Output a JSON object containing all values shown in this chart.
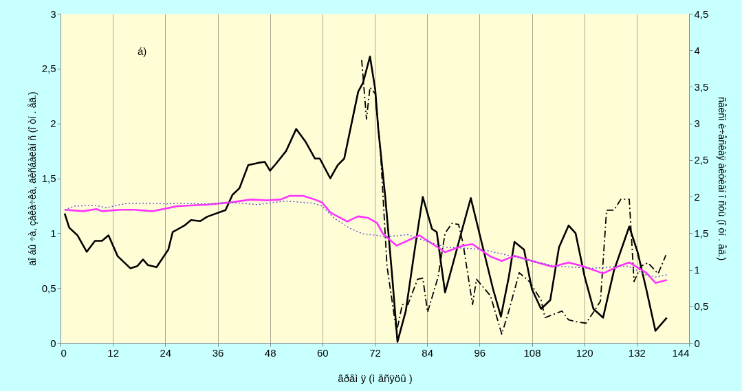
{
  "chart_data": {
    "type": "line",
    "xlabel": "âðåì ÿ (ì åñÿöû )",
    "ylabel": "äî áû ÷à, çàêà÷êà, äèñáàëàí ñ (î òí . åä.)",
    "y2label": "ñåéñì è÷åñêàÿ àêòèâí î ñòü (î òí . åä.)",
    "annotations": [
      "á)"
    ],
    "xlim": [
      0,
      144
    ],
    "xticks": [
      0,
      12,
      24,
      36,
      48,
      60,
      72,
      84,
      96,
      108,
      120,
      132,
      144
    ],
    "ylim": [
      0,
      3
    ],
    "yticks": [
      0,
      {
        "value": 0.5,
        "label": "0,5"
      },
      1,
      {
        "value": 1.5,
        "label": "1,5"
      },
      2,
      {
        "value": 2.5,
        "label": "2,5"
      },
      3
    ],
    "y2lim": [
      0,
      4.5
    ],
    "y2ticks": [
      0,
      {
        "value": 0.5,
        "label": "0,5"
      },
      1,
      {
        "value": 1.5,
        "label": "1,5"
      },
      2,
      {
        "value": 2.5,
        "label": "2,5"
      },
      3,
      {
        "value": 3.5,
        "label": "3,5"
      },
      4,
      {
        "value": 4.5,
        "label": "4,5"
      }
    ],
    "grid": "x",
    "marker": "none",
    "series": [
      {
        "color": "#000000",
        "line_style": "solid",
        "x": [
          0.95,
          2.0,
          3.9,
          6,
          7.9,
          9.5,
          11,
          13.1,
          16,
          17.6,
          18.9,
          20,
          22,
          24.7,
          25.7,
          28.4,
          29.9,
          32,
          33.6,
          37.8,
          39.4,
          41,
          43,
          45.2,
          46.8,
          48,
          49.3,
          51.7,
          54,
          56.2,
          58.3,
          59.4,
          61.8,
          63.5,
          65,
          68.2,
          69.3,
          70.9,
          72.1,
          72.8,
          74.4,
          76,
          77.2,
          79.1,
          81,
          83,
          85.1,
          86.2,
          88.1,
          90.1,
          92.2,
          94,
          95.9,
          99.1,
          100.9,
          102.7,
          104,
          106.2,
          108,
          110.1,
          112.2,
          114.2,
          116.4,
          118,
          120.1,
          122.1,
          124.3,
          126.8,
          130.3,
          132.2,
          134.2,
          136.3,
          138.9
        ],
        "values": [
          1.18,
          1.05,
          0.98,
          0.83,
          0.93,
          0.93,
          0.98,
          0.79,
          0.68,
          0.7,
          0.76,
          0.71,
          0.69,
          0.85,
          1.01,
          1.07,
          1.12,
          1.11,
          1.15,
          1.21,
          1.35,
          1.41,
          1.62,
          1.64,
          1.65,
          1.57,
          1.63,
          1.75,
          1.95,
          1.83,
          1.68,
          1.68,
          1.5,
          1.62,
          1.68,
          2.29,
          2.37,
          2.61,
          2.31,
          1.95,
          1.33,
          0.6,
          0.01,
          0.29,
          0.81,
          1.33,
          1.04,
          1.01,
          0.46,
          0.75,
          1.06,
          1.32,
          1.01,
          0.49,
          0.24,
          0.6,
          0.92,
          0.85,
          0.49,
          0.31,
          0.39,
          0.87,
          1.07,
          1.0,
          0.6,
          0.31,
          0.23,
          0.66,
          1.06,
          0.83,
          0.49,
          0.11,
          0.23
        ]
      },
      {
        "color": "#000000",
        "line_style": "dashed",
        "x": [
          69,
          70.1,
          70.9,
          72.1,
          73.3,
          74.8,
          77,
          78.3,
          79.6,
          81.8,
          83,
          84.1,
          86.5,
          88.1,
          89.7,
          91.2,
          92.2,
          94.4,
          95.3,
          98.5,
          101.1,
          102.7,
          105.1,
          107.4,
          110.1,
          111,
          114.9,
          116.4,
          118.5,
          120.4,
          122.1,
          123.7,
          125.1,
          126.8,
          128.4,
          130.3,
          131.4,
          133,
          134.6,
          136.9,
          138.7
        ],
        "values": [
          2.58,
          2.04,
          2.33,
          2.27,
          1.75,
          0.7,
          0.1,
          0.35,
          0.35,
          0.58,
          0.59,
          0.28,
          0.6,
          1.0,
          1.09,
          1.08,
          0.91,
          0.35,
          0.58,
          0.43,
          0.08,
          0.29,
          0.64,
          0.56,
          0.39,
          0.23,
          0.29,
          0.21,
          0.19,
          0.18,
          0.28,
          0.38,
          1.21,
          1.21,
          1.31,
          1.31,
          0.56,
          0.7,
          0.73,
          0.63,
          0.8
        ]
      },
      {
        "color": "#ff33ff",
        "line_style": "solid",
        "axis": "y2",
        "x": [
          0.95,
          5.2,
          8.2,
          9.5,
          13.7,
          16.9,
          21,
          26.8,
          33.6,
          38.9,
          43.6,
          47.3,
          50.4,
          52.5,
          55.6,
          58.3,
          59.9,
          61.9,
          65.7,
          68.2,
          70.4,
          72.5,
          73.9,
          77,
          82.2,
          88.1,
          92.2,
          94.4,
          98.5,
          101.1,
          104,
          108,
          112.7,
          116.4,
          119.6,
          124.3,
          127.9,
          130.3,
          134.2,
          136.3,
          138.9
        ],
        "values": [
          1.82,
          1.8,
          1.83,
          1.8,
          1.82,
          1.82,
          1.8,
          1.87,
          1.89,
          1.92,
          1.96,
          1.95,
          1.96,
          2.01,
          2.01,
          1.96,
          1.92,
          1.78,
          1.66,
          1.73,
          1.71,
          1.64,
          1.49,
          1.33,
          1.47,
          1.24,
          1.33,
          1.35,
          1.18,
          1.12,
          1.19,
          1.12,
          1.04,
          1.1,
          1.05,
          0.95,
          1.05,
          1.1,
          0.96,
          0.82,
          0.86
        ]
      },
      {
        "color": "#5555cc",
        "line_style": "dotted",
        "axis": "y2",
        "x": [
          0.95,
          3.2,
          7.9,
          10.6,
          15.3,
          21,
          24.1,
          27.3,
          33.6,
          38.9,
          45.2,
          51.5,
          57.8,
          59.9,
          62.6,
          66.2,
          69.3,
          72.5,
          74.4,
          79.6,
          81.8,
          88.1,
          96.4,
          103.8,
          113.3,
          121.6,
          130,
          134.2,
          136.3,
          138.9
        ],
        "values": [
          1.82,
          1.87,
          1.88,
          1.85,
          1.91,
          1.91,
          1.9,
          1.91,
          1.9,
          1.92,
          1.89,
          1.94,
          1.91,
          1.87,
          1.71,
          1.57,
          1.49,
          1.47,
          1.45,
          1.48,
          1.43,
          1.31,
          1.28,
          1.18,
          1.05,
          1.02,
          1.05,
          0.93,
          0.9,
          0.93
        ]
      }
    ]
  }
}
